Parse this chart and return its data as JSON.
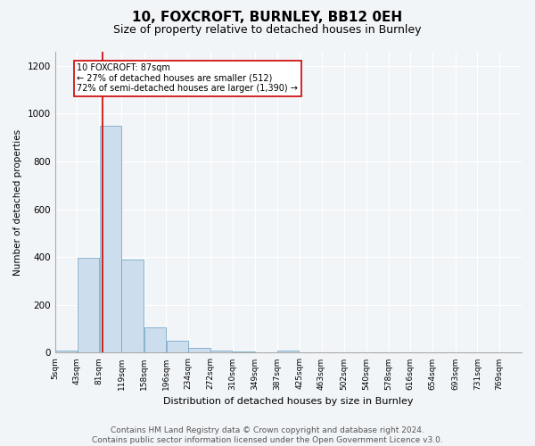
{
  "title": "10, FOXCROFT, BURNLEY, BB12 0EH",
  "subtitle": "Size of property relative to detached houses in Burnley",
  "xlabel": "Distribution of detached houses by size in Burnley",
  "ylabel": "Number of detached properties",
  "bins": [
    "5sqm",
    "43sqm",
    "81sqm",
    "119sqm",
    "158sqm",
    "196sqm",
    "234sqm",
    "272sqm",
    "310sqm",
    "349sqm",
    "387sqm",
    "425sqm",
    "463sqm",
    "502sqm",
    "540sqm",
    "578sqm",
    "616sqm",
    "654sqm",
    "693sqm",
    "731sqm",
    "769sqm"
  ],
  "bin_edges": [
    5,
    43,
    81,
    119,
    158,
    196,
    234,
    272,
    310,
    349,
    387,
    425,
    463,
    502,
    540,
    578,
    616,
    654,
    693,
    731,
    769,
    807
  ],
  "bar_heights": [
    10,
    395,
    950,
    390,
    105,
    50,
    20,
    10,
    5,
    2,
    10,
    2,
    0,
    0,
    0,
    0,
    0,
    0,
    0,
    0,
    0
  ],
  "bar_color": "#ccdded",
  "bar_edge_color": "#7aaac8",
  "property_value": 87,
  "red_line_color": "#cc0000",
  "annotation_text_line1": "10 FOXCROFT: 87sqm",
  "annotation_text_line2": "← 27% of detached houses are smaller (512)",
  "annotation_text_line3": "72% of semi-detached houses are larger (1,390) →",
  "annotation_box_color": "#ffffff",
  "annotation_box_edge": "#cc0000",
  "ylim": [
    0,
    1260
  ],
  "yticks": [
    0,
    200,
    400,
    600,
    800,
    1000,
    1200
  ],
  "footer_line1": "Contains HM Land Registry data © Crown copyright and database right 2024.",
  "footer_line2": "Contains public sector information licensed under the Open Government Licence v3.0.",
  "background_color": "#f2f5f8",
  "plot_background": "#f2f5f8",
  "grid_color": "#ffffff",
  "title_fontsize": 11,
  "subtitle_fontsize": 9,
  "ylabel_fontsize": 7.5,
  "xlabel_fontsize": 8,
  "tick_fontsize": 6.5,
  "ytick_fontsize": 7.5,
  "ann_fontsize": 7,
  "footer_fontsize": 6.5
}
